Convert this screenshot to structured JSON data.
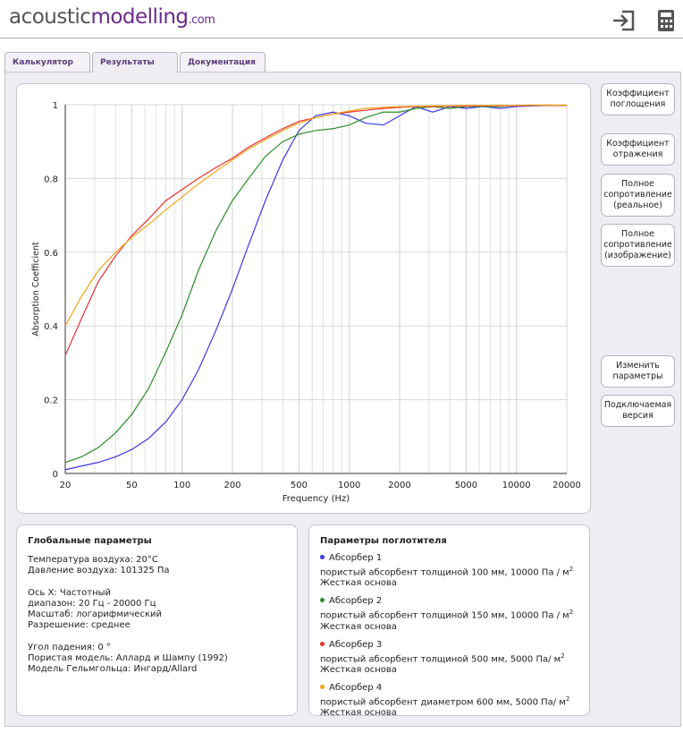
{
  "header": {
    "logo": {
      "part1": "acoustic",
      "part2": "modelling",
      "part3": ".com"
    }
  },
  "tabs": [
    "Калькулятор",
    "Результаты",
    "Документация"
  ],
  "buttons": [
    "Коэффициент поглощения",
    "Коэффициент отражения",
    "Полное сопротивление (реальное)",
    "Полное сопротивление (изображение)",
    "Изменить параметры",
    "Подключаемая версия"
  ],
  "chart_data": {
    "type": "line",
    "xlabel": "Frequency (Hz)",
    "ylabel": "Absorption Coefficient",
    "xscale": "log",
    "grid": true,
    "x": [
      20,
      25,
      31.5,
      40,
      50,
      63,
      80,
      100,
      125,
      160,
      200,
      250,
      315,
      400,
      500,
      630,
      800,
      1000,
      1250,
      1600,
      2000,
      2500,
      3150,
      4000,
      5000,
      6300,
      8000,
      10000,
      12500,
      16000,
      20000
    ],
    "series": [
      {
        "name": "Абсорбер 1",
        "color": "#3a3ae0",
        "values": [
          0.01,
          0.02,
          0.03,
          0.045,
          0.065,
          0.095,
          0.14,
          0.2,
          0.28,
          0.39,
          0.5,
          0.62,
          0.74,
          0.85,
          0.93,
          0.97,
          0.98,
          0.97,
          0.95,
          0.945,
          0.97,
          0.995,
          0.98,
          0.995,
          0.99,
          0.995,
          0.99,
          0.995,
          0.997,
          0.998,
          0.998
        ]
      },
      {
        "name": "Абсорбер 2",
        "color": "#2a8c2a",
        "values": [
          0.03,
          0.045,
          0.07,
          0.11,
          0.16,
          0.23,
          0.33,
          0.43,
          0.55,
          0.66,
          0.74,
          0.8,
          0.86,
          0.9,
          0.92,
          0.93,
          0.935,
          0.945,
          0.965,
          0.98,
          0.98,
          0.99,
          0.995,
          0.99,
          0.995,
          0.995,
          0.995,
          0.998,
          0.998,
          0.998,
          0.998
        ]
      },
      {
        "name": "Абсорбер 3",
        "color": "#e83030",
        "values": [
          0.32,
          0.42,
          0.52,
          0.59,
          0.645,
          0.69,
          0.74,
          0.77,
          0.8,
          0.83,
          0.855,
          0.885,
          0.91,
          0.935,
          0.955,
          0.965,
          0.975,
          0.98,
          0.985,
          0.99,
          0.993,
          0.995,
          0.995,
          0.996,
          0.996,
          0.997,
          0.997,
          0.997,
          0.998,
          0.998,
          0.998
        ]
      },
      {
        "name": "Абсорбер 4",
        "color": "#f2a51c",
        "values": [
          0.4,
          0.48,
          0.55,
          0.6,
          0.64,
          0.675,
          0.715,
          0.75,
          0.785,
          0.82,
          0.85,
          0.88,
          0.905,
          0.93,
          0.95,
          0.965,
          0.975,
          0.983,
          0.99,
          0.993,
          0.995,
          0.996,
          0.997,
          0.997,
          0.998,
          0.998,
          0.998,
          0.998,
          0.999,
          0.999,
          0.999
        ]
      }
    ],
    "xlim": [
      20,
      20000
    ],
    "ylim": [
      0,
      1
    ],
    "xticks": [
      20,
      50,
      100,
      200,
      500,
      1000,
      2000,
      5000,
      10000,
      20000
    ],
    "xminorticks": [
      30,
      40,
      60,
      70,
      80,
      90,
      300,
      400,
      600,
      700,
      800,
      900,
      3000,
      4000,
      6000,
      7000,
      8000,
      9000
    ],
    "yticks": [
      0,
      0.2,
      0.4,
      0.6,
      0.8,
      1
    ]
  },
  "panels": {
    "global": {
      "title": "Глобальные параметры",
      "groups": [
        [
          "Температура воздуха: 20°C",
          "Давление воздуха: 101325 Па"
        ],
        [
          "Ось X: Частотный",
          "диапазон: 20 Гц - 20000 Гц",
          "Масштаб: логарифмический",
          "Разрешение: среднее"
        ],
        [
          "Угол падения: 0 °",
          "Пористая модель: Аллард и Шампу (1992)",
          "Модель Гельмгольца: Ингард/Allard"
        ]
      ]
    },
    "absorber": {
      "title": "Параметры поглотителя",
      "items": [
        {
          "desc": "пористый абсорбент толщиной 100 мм, 10000 Па / м",
          "sup": "2",
          "base": "Жесткая основа"
        },
        {
          "desc": "пористый абсорбент толщиной 150 мм, 10000 Па / м",
          "sup": "2",
          "base": "Жесткая основа"
        },
        {
          "desc": "пористый абсорбент толщиной 500 мм, 5000 Па/ м",
          "sup": "2",
          "base": "Жесткая основа"
        },
        {
          "desc": "пористый абсорбент диаметром 600 мм, 5000 Па/ м",
          "sup": "2",
          "base": "Жесткая основа"
        }
      ]
    }
  }
}
